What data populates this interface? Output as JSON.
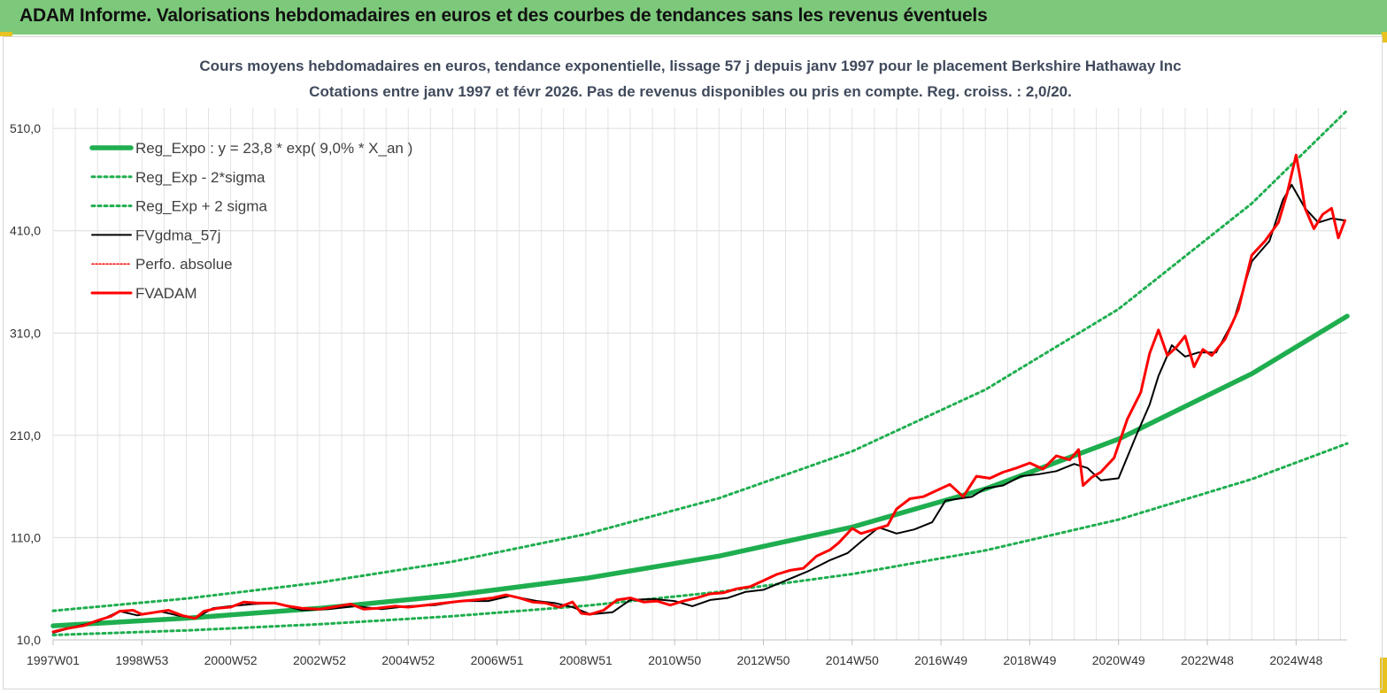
{
  "banner": {
    "title": "ADAM Informe. Valorisations hebdomadaires en euros et des courbes de tendances sans les revenus éventuels"
  },
  "chart_data": {
    "type": "line",
    "title": "Cours moyens hebdomadaires en euros, tendance exponentielle, lissage 57 j depuis janv 1997 pour le placement Berkshire Hathaway Inc",
    "subtitle": "Cotations entre janv 1997 et févr 2026. Pas de revenus disponibles ou pris en compte. Reg. croiss. : 2,0/20.",
    "xlabel": "",
    "ylabel": "",
    "ylim": [
      10,
      530
    ],
    "y_ticks": [
      "10,0",
      "110,0",
      "210,0",
      "310,0",
      "410,0",
      "510,0"
    ],
    "y_tick_values": [
      10,
      110,
      210,
      310,
      410,
      510
    ],
    "x_ticks": [
      "1997W01",
      "1998W53",
      "2000W52",
      "2002W52",
      "2004W52",
      "2006W51",
      "2008W51",
      "2010W50",
      "2012W50",
      "2014W50",
      "2016W49",
      "2018W49",
      "2020W49",
      "2022W48",
      "2024W48"
    ],
    "x_tick_years": [
      1997.0,
      1999.0,
      2001.0,
      2003.0,
      2005.0,
      2007.0,
      2009.0,
      2011.0,
      2013.0,
      2015.0,
      2017.0,
      2019.0,
      2021.0,
      2023.0,
      2025.0
    ],
    "x_range_years": [
      1997.0,
      2026.15
    ],
    "grid": "vertical and horizontal",
    "legend_position": "top-left",
    "series": [
      {
        "name": "Reg_Expo : y = 23,8 * exp( 9,0% *  X_an )",
        "style": "thick-solid",
        "color": "#1fae4f",
        "x": [
          1997.0,
          2000.0,
          2003.0,
          2006.0,
          2009.0,
          2012.0,
          2015.0,
          2018.0,
          2021.0,
          2024.0,
          2026.15
        ],
        "y": [
          23.8,
          31.2,
          40.9,
          53.6,
          70.2,
          91.9,
          120.3,
          157.6,
          206.3,
          270.2,
          326.5
        ]
      },
      {
        "name": "Reg_Exp - 2*sigma",
        "style": "dotted",
        "color": "#1fae4f",
        "x": [
          1997.0,
          2000.0,
          2003.0,
          2006.0,
          2009.0,
          2012.0,
          2015.0,
          2018.0,
          2021.0,
          2024.0,
          2026.15
        ],
        "y": [
          14.8,
          19.3,
          25.3,
          33.2,
          43.4,
          56.9,
          74.4,
          97.5,
          127.6,
          167.1,
          202.0
        ]
      },
      {
        "name": "Reg_Exp + 2 sigma",
        "style": "dotted",
        "color": "#1fae4f",
        "x": [
          1997.0,
          2000.0,
          2003.0,
          2006.0,
          2009.0,
          2012.0,
          2015.0,
          2018.0,
          2021.0,
          2024.0,
          2026.15
        ],
        "y": [
          38.5,
          50.4,
          66.1,
          86.6,
          113.4,
          148.5,
          194.4,
          254.6,
          333.4,
          436.6,
          527.7
        ]
      },
      {
        "name": "FVgdma_57j",
        "style": "solid",
        "color": "#000000",
        "x": [
          1997.0,
          1997.5,
          1998.0,
          1998.5,
          1998.9,
          1999.4,
          1999.8,
          2000.2,
          2000.6,
          2001.0,
          2001.5,
          2002.0,
          2002.6,
          2003.2,
          2003.8,
          2004.4,
          2005.0,
          2005.6,
          2006.2,
          2006.8,
          2007.3,
          2007.9,
          2008.3,
          2008.7,
          2009.1,
          2009.6,
          2010.0,
          2010.5,
          2011.0,
          2011.4,
          2011.8,
          2012.2,
          2012.6,
          2013.0,
          2013.5,
          2014.0,
          2014.5,
          2014.9,
          2015.2,
          2015.6,
          2016.0,
          2016.4,
          2016.8,
          2017.1,
          2017.4,
          2017.7,
          2018.0,
          2018.4,
          2018.8,
          2019.2,
          2019.6,
          2020.0,
          2020.3,
          2020.6,
          2021.0,
          2021.4,
          2021.7,
          2021.9,
          2022.2,
          2022.5,
          2022.8,
          2023.2,
          2023.6,
          2024.0,
          2024.4,
          2024.7,
          2024.9,
          2025.2,
          2025.5,
          2025.8,
          2026.1
        ],
        "y": [
          17,
          23,
          28,
          38,
          34,
          38,
          34,
          31,
          41,
          43,
          45,
          46,
          39,
          40,
          43,
          40,
          43,
          44,
          48,
          48,
          53,
          48,
          46,
          42,
          35,
          37,
          49,
          50,
          48,
          43,
          49,
          51,
          57,
          59,
          68,
          77,
          88,
          95,
          106,
          120,
          114,
          118,
          125,
          146,
          148,
          150,
          158,
          161,
          170,
          172,
          175,
          182,
          178,
          166,
          168,
          210,
          240,
          268,
          298,
          287,
          291,
          291,
          323,
          380,
          400,
          440,
          455,
          432,
          418,
          422,
          420
        ]
      },
      {
        "name": "Perfo. absolue",
        "style": "dotted",
        "color": "#ff0000",
        "x": [
          1997.0,
          1998.5,
          2000.0,
          2002.0,
          2004.0,
          2006.0,
          2008.0,
          2010.0,
          2012.0,
          2014.0,
          2016.0,
          2018.0,
          2020.0,
          2022.0,
          2024.0,
          2026.1
        ],
        "y": [
          17,
          38,
          31,
          46,
          40,
          44,
          46,
          49,
          51,
          77,
          114,
          158,
          182,
          268,
          380,
          420
        ]
      },
      {
        "name": "FVADAM",
        "style": "thick-solid",
        "color": "#ff0000",
        "x": [
          1997.0,
          1997.3,
          1997.7,
          1998.0,
          1998.3,
          1998.5,
          1998.8,
          1999.0,
          1999.3,
          1999.6,
          1999.9,
          2000.2,
          2000.4,
          2000.7,
          2001.0,
          2001.3,
          2001.6,
          2002.0,
          2002.3,
          2002.6,
          2003.0,
          2003.3,
          2003.7,
          2004.0,
          2004.3,
          2004.7,
          2005.0,
          2005.4,
          2005.8,
          2006.2,
          2006.5,
          2006.9,
          2007.2,
          2007.5,
          2007.8,
          2008.1,
          2008.4,
          2008.7,
          2008.9,
          2009.1,
          2009.4,
          2009.7,
          2010.0,
          2010.3,
          2010.6,
          2010.9,
          2011.2,
          2011.5,
          2011.8,
          2012.1,
          2012.4,
          2012.7,
          2013.0,
          2013.3,
          2013.6,
          2013.9,
          2014.2,
          2014.5,
          2014.7,
          2015.0,
          2015.2,
          2015.5,
          2015.8,
          2016.0,
          2016.3,
          2016.6,
          2016.9,
          2017.2,
          2017.5,
          2017.8,
          2018.1,
          2018.4,
          2018.7,
          2019.0,
          2019.3,
          2019.6,
          2019.9,
          2020.1,
          2020.2,
          2020.4,
          2020.6,
          2020.9,
          2021.2,
          2021.5,
          2021.7,
          2021.9,
          2022.1,
          2022.3,
          2022.5,
          2022.7,
          2022.9,
          2023.1,
          2023.4,
          2023.7,
          2024.0,
          2024.3,
          2024.6,
          2024.8,
          2025.0,
          2025.1,
          2025.2,
          2025.4,
          2025.6,
          2025.8,
          2025.95,
          2026.1
        ],
        "y": [
          18,
          21,
          24,
          29,
          33,
          38,
          39,
          35,
          37,
          39,
          34,
          31,
          38,
          41,
          42,
          47,
          46,
          46,
          43,
          41,
          40,
          42,
          45,
          40,
          41,
          43,
          42,
          44,
          46,
          48,
          49,
          51,
          54,
          51,
          47,
          46,
          42,
          47,
          36,
          35,
          39,
          49,
          51,
          47,
          48,
          44,
          48,
          51,
          55,
          56,
          60,
          62,
          68,
          74,
          78,
          80,
          92,
          98,
          105,
          119,
          114,
          118,
          122,
          138,
          148,
          150,
          156,
          162,
          150,
          170,
          168,
          174,
          178,
          183,
          177,
          190,
          186,
          196,
          161,
          169,
          174,
          188,
          226,
          252,
          290,
          313,
          288,
          296,
          307,
          277,
          294,
          288,
          304,
          333,
          386,
          400,
          418,
          447,
          484,
          460,
          432,
          412,
          426,
          432,
          403,
          420
        ]
      }
    ]
  }
}
